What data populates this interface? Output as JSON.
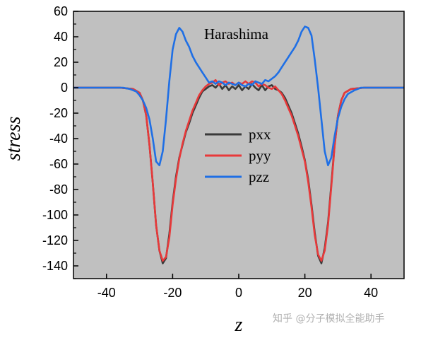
{
  "chart_data": {
    "type": "line",
    "title": "",
    "annotation": "Harashima",
    "xlabel": "z",
    "ylabel": "stress",
    "xlim": [
      -50,
      50
    ],
    "ylim": [
      -150,
      60
    ],
    "xticks": [
      -40,
      -20,
      0,
      20,
      40
    ],
    "xtick_labels": [
      "-40",
      "-20",
      "0",
      "20",
      "40"
    ],
    "yticks": [
      60,
      40,
      20,
      0,
      -20,
      -40,
      -60,
      -80,
      -100,
      -120,
      -140
    ],
    "ytick_labels": [
      "60",
      "40",
      "20",
      "0",
      "-20",
      "-40",
      "-60",
      "-80",
      "-100",
      "-120",
      "-140"
    ],
    "grid": false,
    "background": "#c0c0c0",
    "legend_position": "center",
    "series": [
      {
        "name": "pxx",
        "color": "#3a3a3a",
        "x": [
          -50,
          -36,
          -32,
          -30,
          -29,
          -28,
          -27,
          -26,
          -25,
          -24,
          -23,
          -22,
          -21,
          -20,
          -19,
          -18,
          -17,
          -16,
          -15,
          -14,
          -13,
          -12,
          -11,
          -10,
          -9,
          -8,
          -7,
          -6,
          -5,
          -4,
          -3,
          -2,
          -1,
          0,
          1,
          2,
          3,
          4,
          5,
          6,
          7,
          8,
          9,
          10,
          11,
          12,
          13,
          14,
          15,
          16,
          17,
          18,
          19,
          20,
          21,
          22,
          23,
          24,
          25,
          26,
          27,
          28,
          29,
          30,
          31,
          32,
          34,
          38,
          50
        ],
        "y": [
          0,
          0,
          -1,
          -4,
          -10,
          -22,
          -45,
          -75,
          -108,
          -128,
          -138,
          -134,
          -115,
          -90,
          -70,
          -55,
          -45,
          -35,
          -28,
          -20,
          -14,
          -8,
          -3,
          -1,
          1,
          2,
          0,
          3,
          -1,
          2,
          -2,
          1,
          -1,
          2,
          -2,
          1,
          -1,
          3,
          0,
          -2,
          2,
          -2,
          1,
          2,
          -1,
          -2,
          -4,
          -8,
          -14,
          -20,
          -28,
          -36,
          -46,
          -57,
          -72,
          -92,
          -114,
          -132,
          -138,
          -126,
          -106,
          -76,
          -45,
          -22,
          -10,
          -4,
          -1,
          0,
          0
        ]
      },
      {
        "name": "pyy",
        "color": "#e8393a",
        "x": [
          -50,
          -36,
          -32,
          -30,
          -29,
          -28,
          -27,
          -26,
          -25,
          -24,
          -23,
          -22,
          -21,
          -20,
          -19,
          -18,
          -17,
          -16,
          -15,
          -14,
          -13,
          -12,
          -11,
          -10,
          -9,
          -8,
          -7,
          -6,
          -5,
          -4,
          -3,
          -2,
          -1,
          0,
          1,
          2,
          3,
          4,
          5,
          6,
          7,
          8,
          9,
          10,
          11,
          12,
          13,
          14,
          15,
          16,
          17,
          18,
          19,
          20,
          21,
          22,
          23,
          24,
          25,
          26,
          27,
          28,
          29,
          30,
          31,
          32,
          34,
          38,
          50
        ],
        "y": [
          0,
          0,
          -1,
          -4,
          -10,
          -22,
          -45,
          -75,
          -108,
          -128,
          -136,
          -133,
          -118,
          -92,
          -72,
          -56,
          -44,
          -34,
          -26,
          -18,
          -12,
          -6,
          -2,
          1,
          3,
          4,
          6,
          2,
          4,
          5,
          3,
          4,
          2,
          4,
          3,
          5,
          3,
          5,
          4,
          1,
          3,
          2,
          0,
          -1,
          1,
          -2,
          -5,
          -10,
          -16,
          -22,
          -30,
          -38,
          -48,
          -58,
          -74,
          -94,
          -116,
          -131,
          -136,
          -128,
          -108,
          -78,
          -46,
          -22,
          -10,
          -4,
          -1,
          0,
          0
        ]
      },
      {
        "name": "pzz",
        "color": "#1f6fe5",
        "x": [
          -50,
          -35,
          -33,
          -31,
          -30,
          -29,
          -28,
          -27,
          -26,
          -25,
          -24,
          -23,
          -22,
          -21,
          -20,
          -19,
          -18,
          -17,
          -16,
          -15,
          -14,
          -13,
          -12,
          -11,
          -10,
          -9,
          -8,
          -7,
          -6,
          -5,
          -4,
          -3,
          -2,
          -1,
          0,
          1,
          2,
          3,
          4,
          5,
          6,
          7,
          8,
          9,
          10,
          11,
          12,
          13,
          14,
          15,
          16,
          17,
          18,
          19,
          20,
          21,
          22,
          23,
          24,
          25,
          26,
          27,
          28,
          29,
          30,
          31,
          32,
          33,
          35,
          37,
          50
        ],
        "y": [
          0,
          0,
          -1,
          -3,
          -6,
          -10,
          -16,
          -25,
          -40,
          -58,
          -61,
          -50,
          -25,
          5,
          30,
          42,
          47,
          44,
          37,
          32,
          25,
          20,
          16,
          12,
          8,
          4,
          5,
          3,
          5,
          4,
          2,
          4,
          3,
          2,
          4,
          2,
          1,
          3,
          2,
          5,
          4,
          3,
          6,
          5,
          7,
          9,
          12,
          16,
          20,
          24,
          28,
          32,
          37,
          44,
          48,
          47,
          41,
          22,
          0,
          -25,
          -50,
          -61,
          -55,
          -38,
          -24,
          -15,
          -9,
          -5,
          -2,
          0,
          0
        ]
      }
    ]
  },
  "watermark": "知乎 @分子模拟全能助手"
}
